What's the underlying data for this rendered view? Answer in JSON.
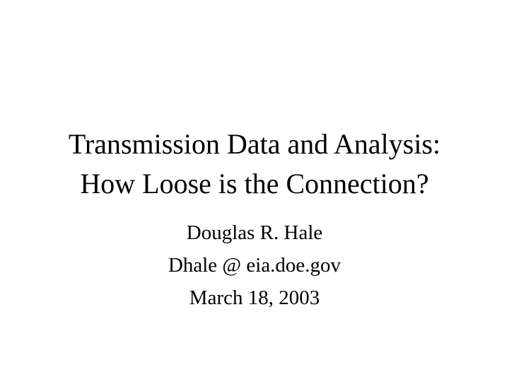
{
  "slide": {
    "title": {
      "line1": "Transmission Data and Analysis:",
      "line2": "How Loose is the Connection?"
    },
    "subtitle": {
      "author": "Douglas R. Hale",
      "email": "Dhale @ eia.doe.gov",
      "date": "March 18, 2003"
    },
    "colors": {
      "background": "#ffffff",
      "text": "#000000"
    }
  }
}
